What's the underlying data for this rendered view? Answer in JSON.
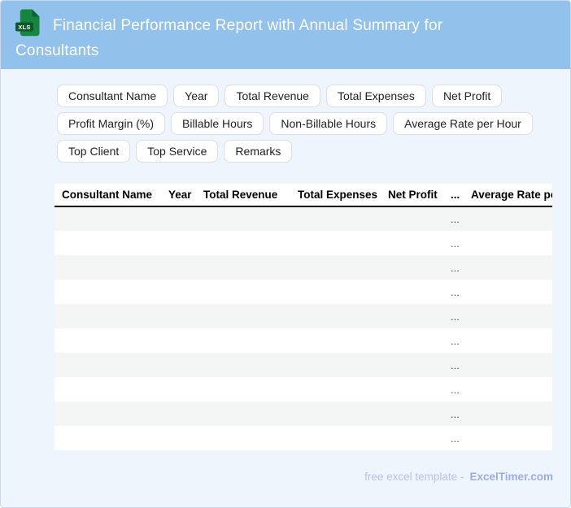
{
  "header": {
    "title": "Financial Performance Report with Annual Summary for Consultants",
    "icon_label": "XLS"
  },
  "chips": [
    "Consultant Name",
    "Year",
    "Total Revenue",
    "Total Expenses",
    "Net Profit",
    "Profit Margin (%)",
    "Billable Hours",
    "Non-Billable Hours",
    "Average Rate per Hour",
    "Top Client",
    "Top Service",
    "Remarks"
  ],
  "table": {
    "columns": [
      "Consultant Name",
      "Year",
      "Total Revenue",
      "Total Expenses",
      "Net Profit",
      "...",
      "Average Rate per Hour"
    ],
    "rows": [
      [
        "",
        "",
        "",
        "",
        "",
        "...",
        ""
      ],
      [
        "",
        "",
        "",
        "",
        "",
        "...",
        ""
      ],
      [
        "",
        "",
        "",
        "",
        "",
        "...",
        ""
      ],
      [
        "",
        "",
        "",
        "",
        "",
        "...",
        ""
      ],
      [
        "",
        "",
        "",
        "",
        "",
        "...",
        ""
      ],
      [
        "",
        "",
        "",
        "",
        "",
        "...",
        ""
      ],
      [
        "",
        "",
        "",
        "",
        "",
        "...",
        ""
      ],
      [
        "",
        "",
        "",
        "",
        "",
        "...",
        ""
      ],
      [
        "",
        "",
        "",
        "",
        "",
        "...",
        ""
      ],
      [
        "",
        "",
        "",
        "",
        "",
        "...",
        ""
      ]
    ]
  },
  "footer": {
    "prefix": "free excel template -",
    "brand": "ExcelTimer.com"
  },
  "colors": {
    "header_bg": "#92c1ec",
    "page_bg": "#eff5fd",
    "icon_green": "#158540",
    "icon_green_dark": "#0a5a29",
    "row_alt": "#f4f5f5",
    "footer_text": "#b7c2ec",
    "footer_brand": "#9dade2"
  }
}
